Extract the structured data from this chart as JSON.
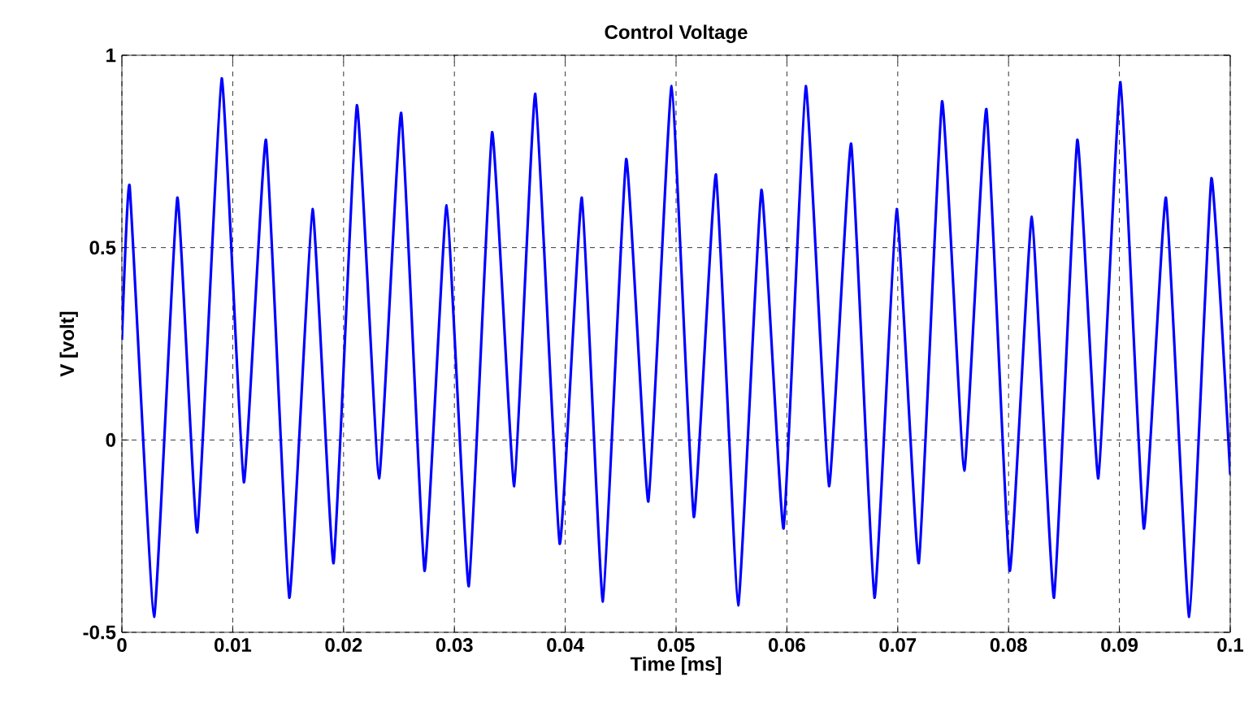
{
  "chart_data": {
    "type": "line",
    "title": "Control Voltage",
    "xlabel": "Time [ms]",
    "ylabel": "V [volt]",
    "xlim": [
      0,
      0.1
    ],
    "ylim": [
      -0.5,
      1
    ],
    "xticks": [
      0,
      0.01,
      0.02,
      0.03,
      0.04,
      0.05,
      0.06,
      0.07,
      0.08,
      0.09,
      0.1
    ],
    "yticks": [
      -0.5,
      0,
      0.5,
      1
    ],
    "grid": true,
    "line_style": "solid",
    "marker": "none",
    "series": [
      {
        "color": "#0000ff",
        "x": [
          0,
          0.0007,
          0.0029,
          0.005,
          0.0068,
          0.009,
          0.011,
          0.013,
          0.0151,
          0.0172,
          0.0191,
          0.0212,
          0.0232,
          0.0252,
          0.0273,
          0.0293,
          0.0313,
          0.0334,
          0.0354,
          0.0373,
          0.0395,
          0.0415,
          0.0434,
          0.0455,
          0.0475,
          0.0496,
          0.0516,
          0.0536,
          0.0556,
          0.0577,
          0.0597,
          0.0617,
          0.0638,
          0.0658,
          0.0679,
          0.0699,
          0.0719,
          0.074,
          0.076,
          0.078,
          0.0801,
          0.0821,
          0.0841,
          0.0862,
          0.0881,
          0.0901,
          0.0922,
          0.0942,
          0.0963,
          0.0983,
          0.1
        ],
        "values": [
          0.26,
          0.66,
          -0.46,
          0.63,
          -0.24,
          0.94,
          -0.11,
          0.78,
          -0.41,
          0.6,
          -0.32,
          0.87,
          -0.1,
          0.85,
          -0.34,
          0.61,
          -0.38,
          0.8,
          -0.12,
          0.9,
          -0.27,
          0.63,
          -0.42,
          0.73,
          -0.16,
          0.92,
          -0.2,
          0.69,
          -0.43,
          0.65,
          -0.23,
          0.92,
          -0.12,
          0.77,
          -0.41,
          0.6,
          -0.32,
          0.88,
          -0.08,
          0.86,
          -0.34,
          0.58,
          -0.41,
          0.78,
          -0.1,
          0.93,
          -0.23,
          0.63,
          -0.46,
          0.68,
          -0.09
        ]
      }
    ]
  }
}
